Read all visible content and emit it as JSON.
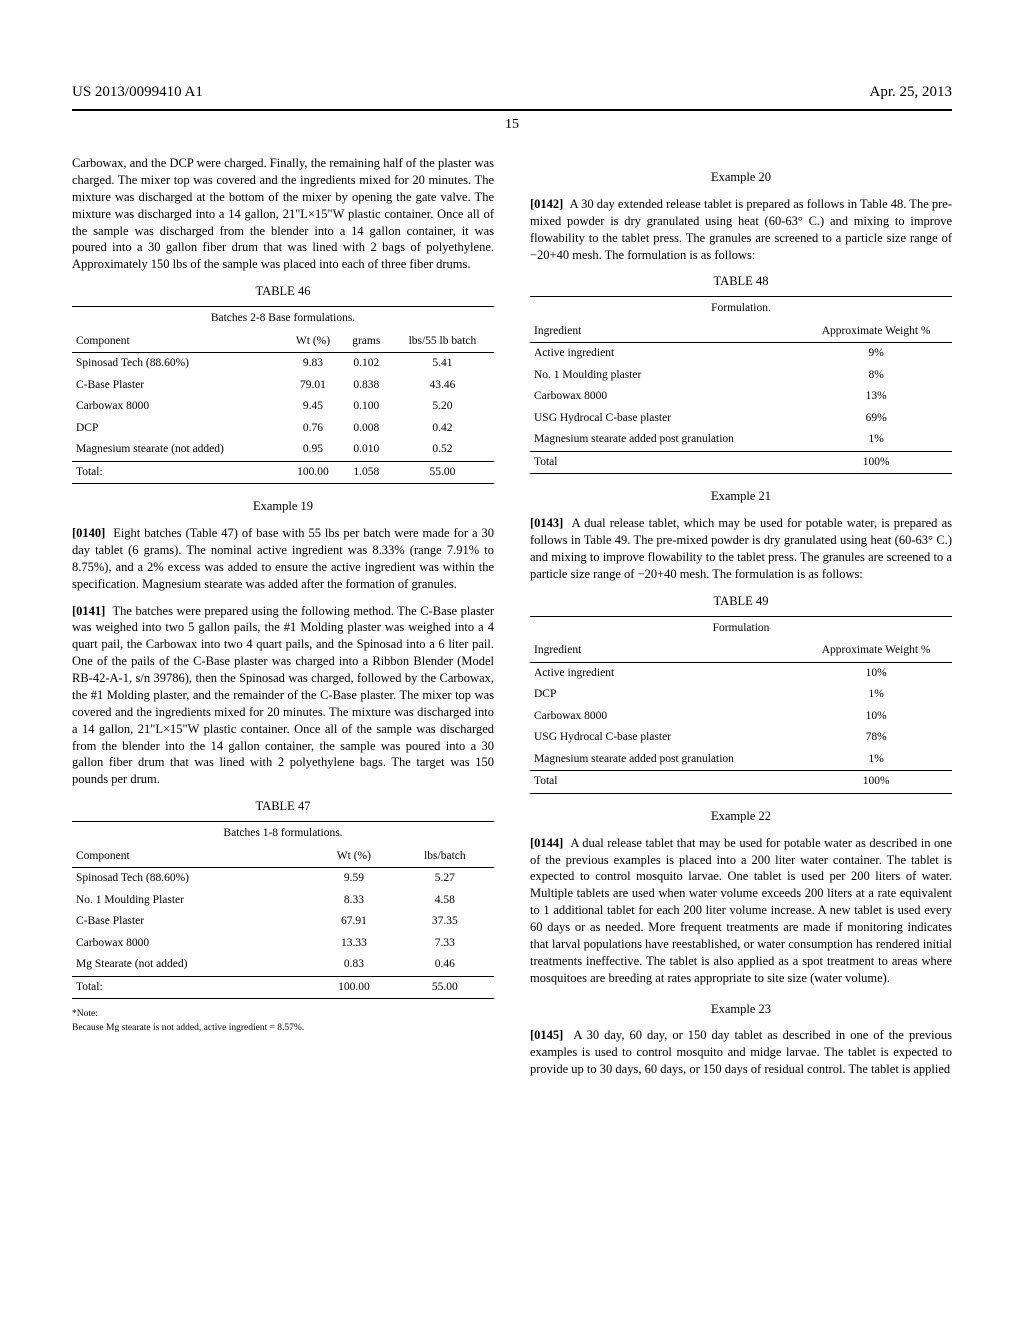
{
  "header": {
    "pub_no": "US 2013/0099410 A1",
    "date": "Apr. 25, 2013",
    "page_no": "15"
  },
  "col_left": {
    "p_continued": "Carbowax, and the DCP were charged. Finally, the remaining half of the plaster was charged. The mixer top was covered and the ingredients mixed for 20 minutes. The mixture was discharged at the bottom of the mixer by opening the gate valve. The mixture was discharged into a 14 gallon, 21\"L×15\"W plastic container. Once all of the sample was discharged from the blender into a 14 gallon container, it was poured into a 30 gallon fiber drum that was lined with 2 bags of polyethylene. Approximately 150 lbs of the sample was placed into each of three fiber drums.",
    "table46": {
      "caption": "TABLE 46",
      "subcaption": "Batches 2-8 Base formulations.",
      "headers": [
        "Component",
        "Wt (%)",
        "grams",
        "lbs/55 lb batch"
      ],
      "rows": [
        [
          "Spinosad Tech (88.60%)",
          "9.83",
          "0.102",
          "5.41"
        ],
        [
          "C-Base Plaster",
          "79.01",
          "0.838",
          "43.46"
        ],
        [
          "Carbowax 8000",
          "9.45",
          "0.100",
          "5.20"
        ],
        [
          "DCP",
          "0.76",
          "0.008",
          "0.42"
        ],
        [
          "Magnesium stearate (not added)",
          "0.95",
          "0.010",
          "0.52"
        ]
      ],
      "total": [
        "Total:",
        "100.00",
        "1.058",
        "55.00"
      ]
    },
    "example19_title": "Example 19",
    "p0140_num": "[0140]",
    "p0140": "Eight batches (Table 47) of base with 55 lbs per batch were made for a 30 day tablet (6 grams). The nominal active ingredient was 8.33% (range 7.91% to 8.75%), and a 2% excess was added to ensure the active ingredient was within the specification. Magnesium stearate was added after the formation of granules.",
    "p0141_num": "[0141]",
    "p0141": "The batches were prepared using the following method. The C-Base plaster was weighed into two 5 gallon pails, the #1 Molding plaster was weighed into a 4 quart pail, the Carbowax into two 4 quart pails, and the Spinosad into a 6 liter pail. One of the pails of the C-Base plaster was charged into a Ribbon Blender (Model RB-42-A-1, s/n 39786), then the Spinosad was charged, followed by the Carbowax, the #1 Molding plaster, and the remainder of the C-Base plaster. The mixer top was covered and the ingredients mixed for 20 minutes. The mixture was discharged into a 14 gallon, 21\"L×15\"W plastic container. Once all of the sample was discharged from the blender into the 14 gallon container, the sample was poured into a 30 gallon fiber drum that was lined with 2 polyethylene bags. The target was 150 pounds per drum.",
    "table47": {
      "caption": "TABLE 47",
      "subcaption": "Batches 1-8 formulations.",
      "headers": [
        "Component",
        "Wt (%)",
        "lbs/batch"
      ],
      "rows": [
        [
          "Spinosad Tech (88.60%)",
          "9.59",
          "5.27"
        ],
        [
          "No. 1 Moulding Plaster",
          "8.33",
          "4.58"
        ],
        [
          "C-Base Plaster",
          "67.91",
          "37.35"
        ],
        [
          "Carbowax 8000",
          "13.33",
          "7.33"
        ],
        [
          "Mg Stearate (not added)",
          "0.83",
          "0.46"
        ]
      ],
      "total": [
        "Total:",
        "100.00",
        "55.00"
      ],
      "note_label": "*Note:",
      "note": "Because Mg stearate is not added, active ingredient = 8.57%."
    }
  },
  "col_right": {
    "example20_title": "Example 20",
    "p0142_num": "[0142]",
    "p0142": "A 30 day extended release tablet is prepared as follows in Table 48. The pre-mixed powder is dry granulated using heat (60-63° C.) and mixing to improve flowability to the tablet press. The granules are screened to a particle size range of −20+40 mesh. The formulation is as follows:",
    "table48": {
      "caption": "TABLE 48",
      "subcaption": "Formulation.",
      "headers": [
        "Ingredient",
        "Approximate Weight %"
      ],
      "rows": [
        [
          "Active ingredient",
          "9%"
        ],
        [
          "No. 1 Moulding plaster",
          "8%"
        ],
        [
          "Carbowax 8000",
          "13%"
        ],
        [
          "USG Hydrocal C-base plaster",
          "69%"
        ],
        [
          "Magnesium stearate added post granulation",
          "1%"
        ]
      ],
      "total": [
        "Total",
        "100%"
      ]
    },
    "example21_title": "Example 21",
    "p0143_num": "[0143]",
    "p0143": "A dual release tablet, which may be used for potable water, is prepared as follows in Table 49. The pre-mixed powder is dry granulated using heat (60-63° C.) and mixing to improve flowability to the tablet press. The granules are screened to a particle size range of −20+40 mesh. The formulation is as follows:",
    "table49": {
      "caption": "TABLE 49",
      "subcaption": "Formulation",
      "headers": [
        "Ingredient",
        "Approximate Weight %"
      ],
      "rows": [
        [
          "Active ingredient",
          "10%"
        ],
        [
          "DCP",
          "1%"
        ],
        [
          "Carbowax 8000",
          "10%"
        ],
        [
          "USG Hydrocal C-base plaster",
          "78%"
        ],
        [
          "Magnesium stearate added post granulation",
          "1%"
        ]
      ],
      "total": [
        "Total",
        "100%"
      ]
    },
    "example22_title": "Example 22",
    "p0144_num": "[0144]",
    "p0144": "A dual release tablet that may be used for potable water as described in one of the previous examples is placed into a 200 liter water container. The tablet is expected to control mosquito larvae. One tablet is used per 200 liters of water. Multiple tablets are used when water volume exceeds 200 liters at a rate equivalent to 1 additional tablet for each 200 liter volume increase. A new tablet is used every 60 days or as needed. More frequent treatments are made if monitoring indicates that larval populations have reestablished, or water consumption has rendered initial treatments ineffective. The tablet is also applied as a spot treatment to areas where mosquitoes are breeding at rates appropriate to site size (water volume).",
    "example23_title": "Example 23",
    "p0145_num": "[0145]",
    "p0145": "A 30 day, 60 day, or 150 day tablet as described in one of the previous examples is used to control mosquito and midge larvae. The tablet is expected to provide up to 30 days, 60 days, or 150 days of residual control. The tablet is applied"
  }
}
